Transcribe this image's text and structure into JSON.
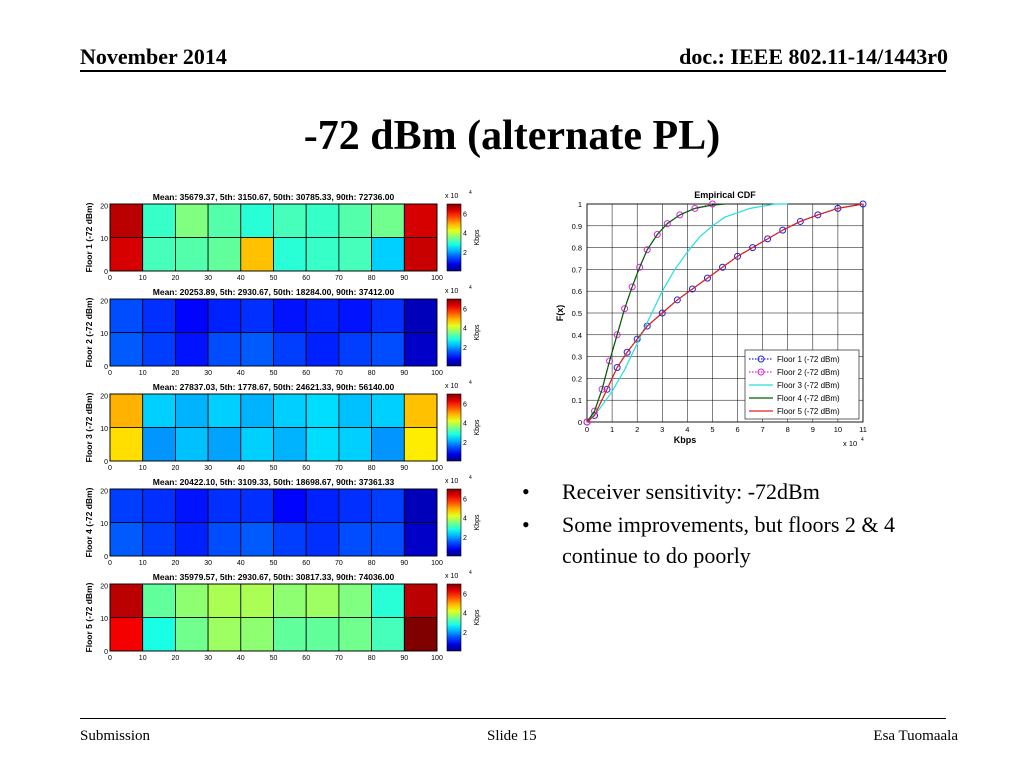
{
  "header": {
    "date": "November 2014",
    "doc": "doc.: IEEE 802.11-14/1443r0"
  },
  "title": "-72 dBm (alternate PL)",
  "bullets": [
    "Receiver sensitivity: -72dBm",
    "Some improvements, but floors 2 & 4 continue to do poorly"
  ],
  "footer": {
    "left": "Submission",
    "center": "Slide 15",
    "right": "Esa Tuomaala"
  },
  "chart_data": [
    {
      "type": "heatmap",
      "title": "Mean: 35679.37, 5th: 3150.67, 50th: 30785.33, 90th: 72736.00",
      "ylabel": "Floor 1 (-72 dBm)",
      "xticks": [
        "0",
        "10",
        "20",
        "30",
        "40",
        "50",
        "60",
        "70",
        "80",
        "90",
        "100"
      ],
      "yticks": [
        "0",
        "10",
        "20"
      ],
      "colorbar": {
        "label": "Kbps",
        "exponent": "x 10",
        "exponent_power": "4",
        "ticks": [
          "2",
          "4",
          "6"
        ],
        "range": [
          0,
          7
        ]
      },
      "rows": [
        [
          6.6,
          3.0,
          3.5,
          3.2,
          2.9,
          3.1,
          3.0,
          3.2,
          3.4,
          6.4
        ],
        [
          6.4,
          3.1,
          3.2,
          3.3,
          4.8,
          2.9,
          3.0,
          3.1,
          2.3,
          6.5
        ]
      ]
    },
    {
      "type": "heatmap",
      "title": "Mean: 20253.89, 5th: 2930.67, 50th: 18284.00, 90th: 37412.00",
      "ylabel": "Floor 2 (-72 dBm)",
      "xticks": [
        "0",
        "10",
        "20",
        "30",
        "40",
        "50",
        "60",
        "70",
        "80",
        "90",
        "100"
      ],
      "yticks": [
        "0",
        "10",
        "20"
      ],
      "colorbar": {
        "label": "Kbps",
        "exponent": "x 10",
        "exponent_power": "4",
        "ticks": [
          "2",
          "4",
          "6"
        ],
        "range": [
          0,
          7
        ]
      },
      "rows": [
        [
          1.4,
          1.2,
          0.9,
          1.1,
          1.2,
          1.0,
          1.1,
          1.0,
          1.2,
          0.4
        ],
        [
          1.5,
          1.3,
          1.0,
          1.4,
          1.5,
          1.3,
          1.1,
          1.3,
          1.4,
          0.5
        ]
      ]
    },
    {
      "type": "heatmap",
      "title": "Mean: 27837.03, 5th: 1778.67, 50th: 24621.33, 90th: 56140.00",
      "ylabel": "Floor 3 (-72 dBm)",
      "xticks": [
        "0",
        "10",
        "20",
        "30",
        "40",
        "50",
        "60",
        "70",
        "80",
        "90",
        "100"
      ],
      "yticks": [
        "0",
        "10",
        "20"
      ],
      "colorbar": {
        "label": "Kbps",
        "exponent": "x 10",
        "exponent_power": "4",
        "ticks": [
          "2",
          "4",
          "6"
        ],
        "range": [
          0,
          7
        ]
      },
      "rows": [
        [
          4.9,
          2.3,
          2.1,
          2.3,
          2.1,
          2.3,
          2.4,
          2.2,
          2.3,
          4.8
        ],
        [
          4.6,
          1.9,
          2.2,
          2.0,
          2.3,
          2.1,
          2.4,
          2.3,
          1.9,
          4.5
        ]
      ]
    },
    {
      "type": "heatmap",
      "title": "Mean: 20422.10, 5th: 3109.33, 50th: 18698.67, 90th: 37361.33",
      "ylabel": "Floor 4 (-72 dBm)",
      "xticks": [
        "0",
        "10",
        "20",
        "30",
        "40",
        "50",
        "60",
        "70",
        "80",
        "90",
        "100"
      ],
      "yticks": [
        "0",
        "10",
        "20"
      ],
      "colorbar": {
        "label": "Kbps",
        "exponent": "x 10",
        "exponent_power": "4",
        "ticks": [
          "2",
          "4",
          "6"
        ],
        "range": [
          0,
          7
        ]
      },
      "rows": [
        [
          1.3,
          1.2,
          1.0,
          1.2,
          1.2,
          0.9,
          1.1,
          1.2,
          1.3,
          0.4
        ],
        [
          1.5,
          1.3,
          1.1,
          1.4,
          1.5,
          1.3,
          1.2,
          1.4,
          1.4,
          0.5
        ]
      ]
    },
    {
      "type": "heatmap",
      "title": "Mean: 35979.57, 5th: 2930.67, 50th: 30817.33, 90th: 74036.00",
      "ylabel": "Floor 5 (-72 dBm)",
      "xticks": [
        "0",
        "10",
        "20",
        "30",
        "40",
        "50",
        "60",
        "70",
        "80",
        "90",
        "100"
      ],
      "yticks": [
        "0",
        "10",
        "20"
      ],
      "colorbar": {
        "label": "Kbps",
        "exponent": "x 10",
        "exponent_power": "4",
        "ticks": [
          "2",
          "4",
          "6"
        ],
        "range": [
          0,
          7
        ]
      },
      "rows": [
        [
          6.6,
          3.3,
          3.6,
          3.8,
          3.8,
          3.6,
          3.7,
          3.5,
          2.9,
          6.6
        ],
        [
          6.2,
          2.8,
          3.4,
          3.7,
          3.6,
          3.3,
          3.3,
          3.4,
          3.1,
          7.0
        ]
      ]
    },
    {
      "type": "line",
      "title": "Empirical CDF",
      "xlabel": "Kbps",
      "ylabel": "F(x)",
      "x_exponent": "x 10",
      "x_exponent_power": "4",
      "xlim": [
        0,
        11
      ],
      "ylim": [
        0,
        1
      ],
      "xticks": [
        "0",
        "1",
        "2",
        "3",
        "4",
        "5",
        "6",
        "7",
        "8",
        "9",
        "10",
        "11"
      ],
      "yticks": [
        "0",
        "0.1",
        "0.2",
        "0.3",
        "0.4",
        "0.5",
        "0.6",
        "0.7",
        "0.8",
        "0.9",
        "1"
      ],
      "grid": true,
      "legend_position": "bottom-right",
      "series": [
        {
          "name": "Floor 1 (-72 dBm)",
          "color": "#2020e0",
          "style": "dotted",
          "marker": "circle",
          "x": [
            0,
            0.3,
            0.8,
            1.2,
            1.6,
            2.0,
            2.4,
            3.0,
            3.6,
            4.2,
            4.8,
            5.4,
            6.0,
            6.6,
            7.2,
            7.8,
            8.5,
            9.2,
            10.0,
            11.0
          ],
          "y": [
            0,
            0.03,
            0.15,
            0.25,
            0.32,
            0.38,
            0.44,
            0.5,
            0.56,
            0.61,
            0.66,
            0.71,
            0.76,
            0.8,
            0.84,
            0.88,
            0.92,
            0.95,
            0.98,
            1.0
          ]
        },
        {
          "name": "Floor 2 (-72 dBm)",
          "color": "#e020e0",
          "style": "dotted",
          "marker": "circle",
          "x": [
            0,
            0.3,
            0.6,
            0.9,
            1.2,
            1.5,
            1.8,
            2.1,
            2.4,
            2.8,
            3.2,
            3.7,
            4.3,
            5.0
          ],
          "y": [
            0,
            0.05,
            0.15,
            0.28,
            0.4,
            0.52,
            0.62,
            0.71,
            0.79,
            0.86,
            0.91,
            0.95,
            0.98,
            1.0
          ]
        },
        {
          "name": "Floor 3 (-72 dBm)",
          "color": "#20e0e0",
          "style": "solid",
          "x": [
            0,
            0.5,
            1.0,
            1.5,
            2.0,
            2.5,
            3.0,
            3.5,
            4.0,
            4.5,
            5.0,
            5.5,
            6.0,
            6.5,
            7.0,
            7.5,
            8.0
          ],
          "y": [
            0,
            0.06,
            0.14,
            0.24,
            0.36,
            0.48,
            0.6,
            0.7,
            0.78,
            0.85,
            0.9,
            0.94,
            0.96,
            0.98,
            0.99,
            1.0,
            1.0
          ]
        },
        {
          "name": "Floor 4 (-72 dBm)",
          "color": "#006000",
          "style": "solid",
          "x": [
            0,
            0.3,
            0.6,
            0.9,
            1.2,
            1.5,
            1.8,
            2.1,
            2.4,
            2.8,
            3.2,
            3.7,
            4.3,
            5.0,
            5.5
          ],
          "y": [
            0,
            0.05,
            0.15,
            0.28,
            0.4,
            0.52,
            0.62,
            0.71,
            0.79,
            0.86,
            0.91,
            0.95,
            0.98,
            0.995,
            1.0
          ]
        },
        {
          "name": "Floor 5 (-72 dBm)",
          "color": "#e02020",
          "style": "solid",
          "x": [
            0,
            0.3,
            0.8,
            1.2,
            1.6,
            2.0,
            2.4,
            3.0,
            3.6,
            4.2,
            4.8,
            5.4,
            6.0,
            6.6,
            7.2,
            7.8,
            8.5,
            9.2,
            10.0,
            11.0
          ],
          "y": [
            0,
            0.03,
            0.15,
            0.25,
            0.32,
            0.38,
            0.44,
            0.5,
            0.56,
            0.61,
            0.66,
            0.71,
            0.76,
            0.8,
            0.84,
            0.88,
            0.92,
            0.95,
            0.98,
            1.0
          ]
        }
      ]
    }
  ]
}
